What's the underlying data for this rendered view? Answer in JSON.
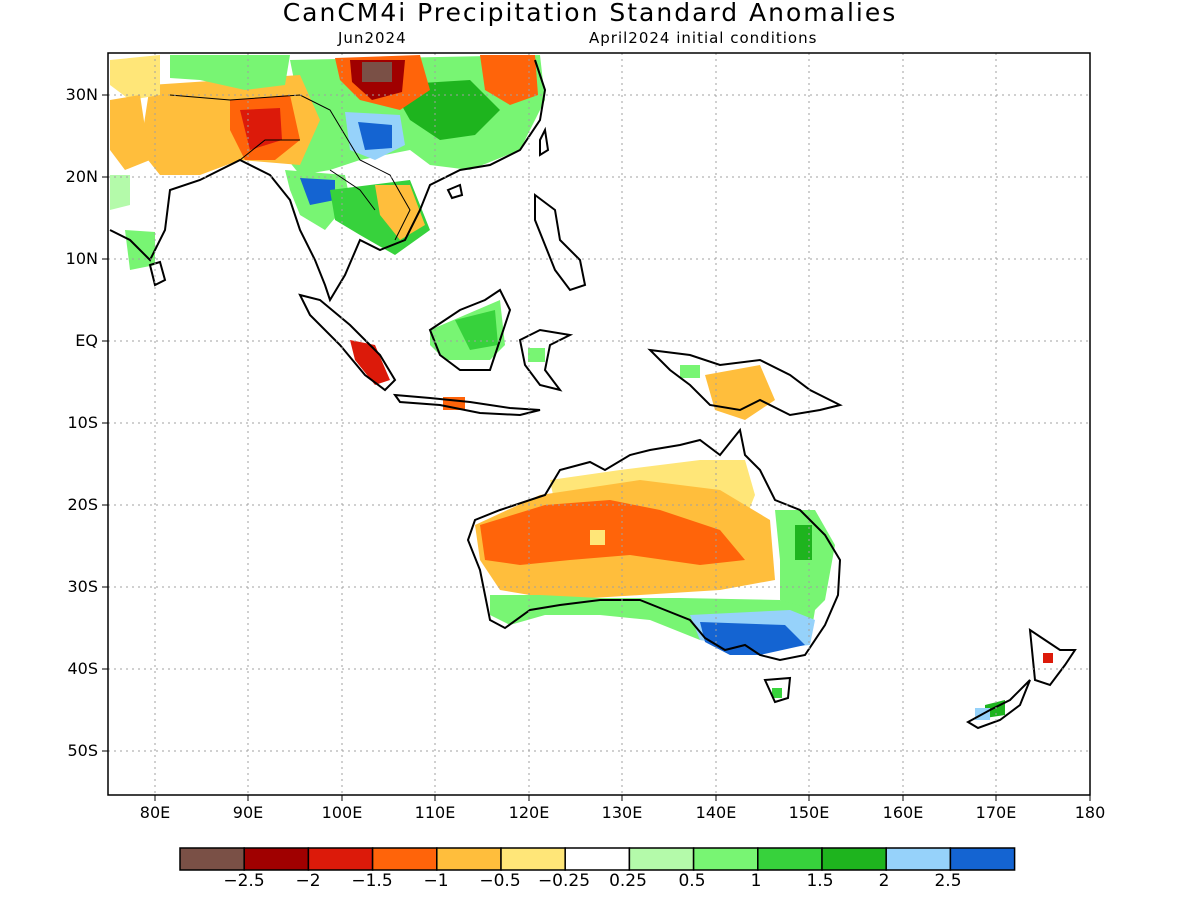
{
  "header": {
    "title": "CanCM4i Precipitation Standard Anomalies",
    "valid_month": "Jun2024",
    "initial_conditions": "April2024 initial conditions"
  },
  "axes": {
    "lat_labels": [
      "30N",
      "20N",
      "10N",
      "EQ",
      "10S",
      "20S",
      "30S",
      "40S",
      "50S"
    ],
    "lon_labels": [
      "80E",
      "90E",
      "100E",
      "110E",
      "120E",
      "130E",
      "140E",
      "150E",
      "160E",
      "170E",
      "180"
    ]
  },
  "colorbar": {
    "colors": [
      "#7a5046",
      "#a00000",
      "#dc1a0a",
      "#ff640a",
      "#ffbe3c",
      "#ffe678",
      "#ffffff",
      "#b4faaa",
      "#78f573",
      "#37d23c",
      "#1eb41e",
      "#96d2fa",
      "#1464d2"
    ],
    "labels": [
      "−2.5",
      "−2",
      "−1.5",
      "−1",
      "−0.5",
      "−0.25",
      "0.25",
      "0.5",
      "1",
      "1.5",
      "2",
      "2.5"
    ]
  },
  "anomaly_regions": [
    {
      "name": "south-china-dry-core",
      "category": "-2.5"
    },
    {
      "name": "south-china-dry",
      "category": "-1.5"
    },
    {
      "name": "southeast-china-wet",
      "category": "1.5"
    },
    {
      "name": "yunnan-wet",
      "category": "2"
    },
    {
      "name": "myanmar-wet",
      "category": "2"
    },
    {
      "name": "bangladesh-dry",
      "category": "-1.5"
    },
    {
      "name": "indochina-dry",
      "category": "-0.5"
    },
    {
      "name": "borneo-wet",
      "category": "1"
    },
    {
      "name": "sumatra-dry",
      "category": "-1.5"
    },
    {
      "name": "new-guinea-dry",
      "category": "-0.5"
    },
    {
      "name": "australia-interior-dry",
      "category": "-1"
    },
    {
      "name": "east-australia-wet",
      "category": "1"
    },
    {
      "name": "southeast-australia-wet",
      "category": "2.5"
    }
  ]
}
